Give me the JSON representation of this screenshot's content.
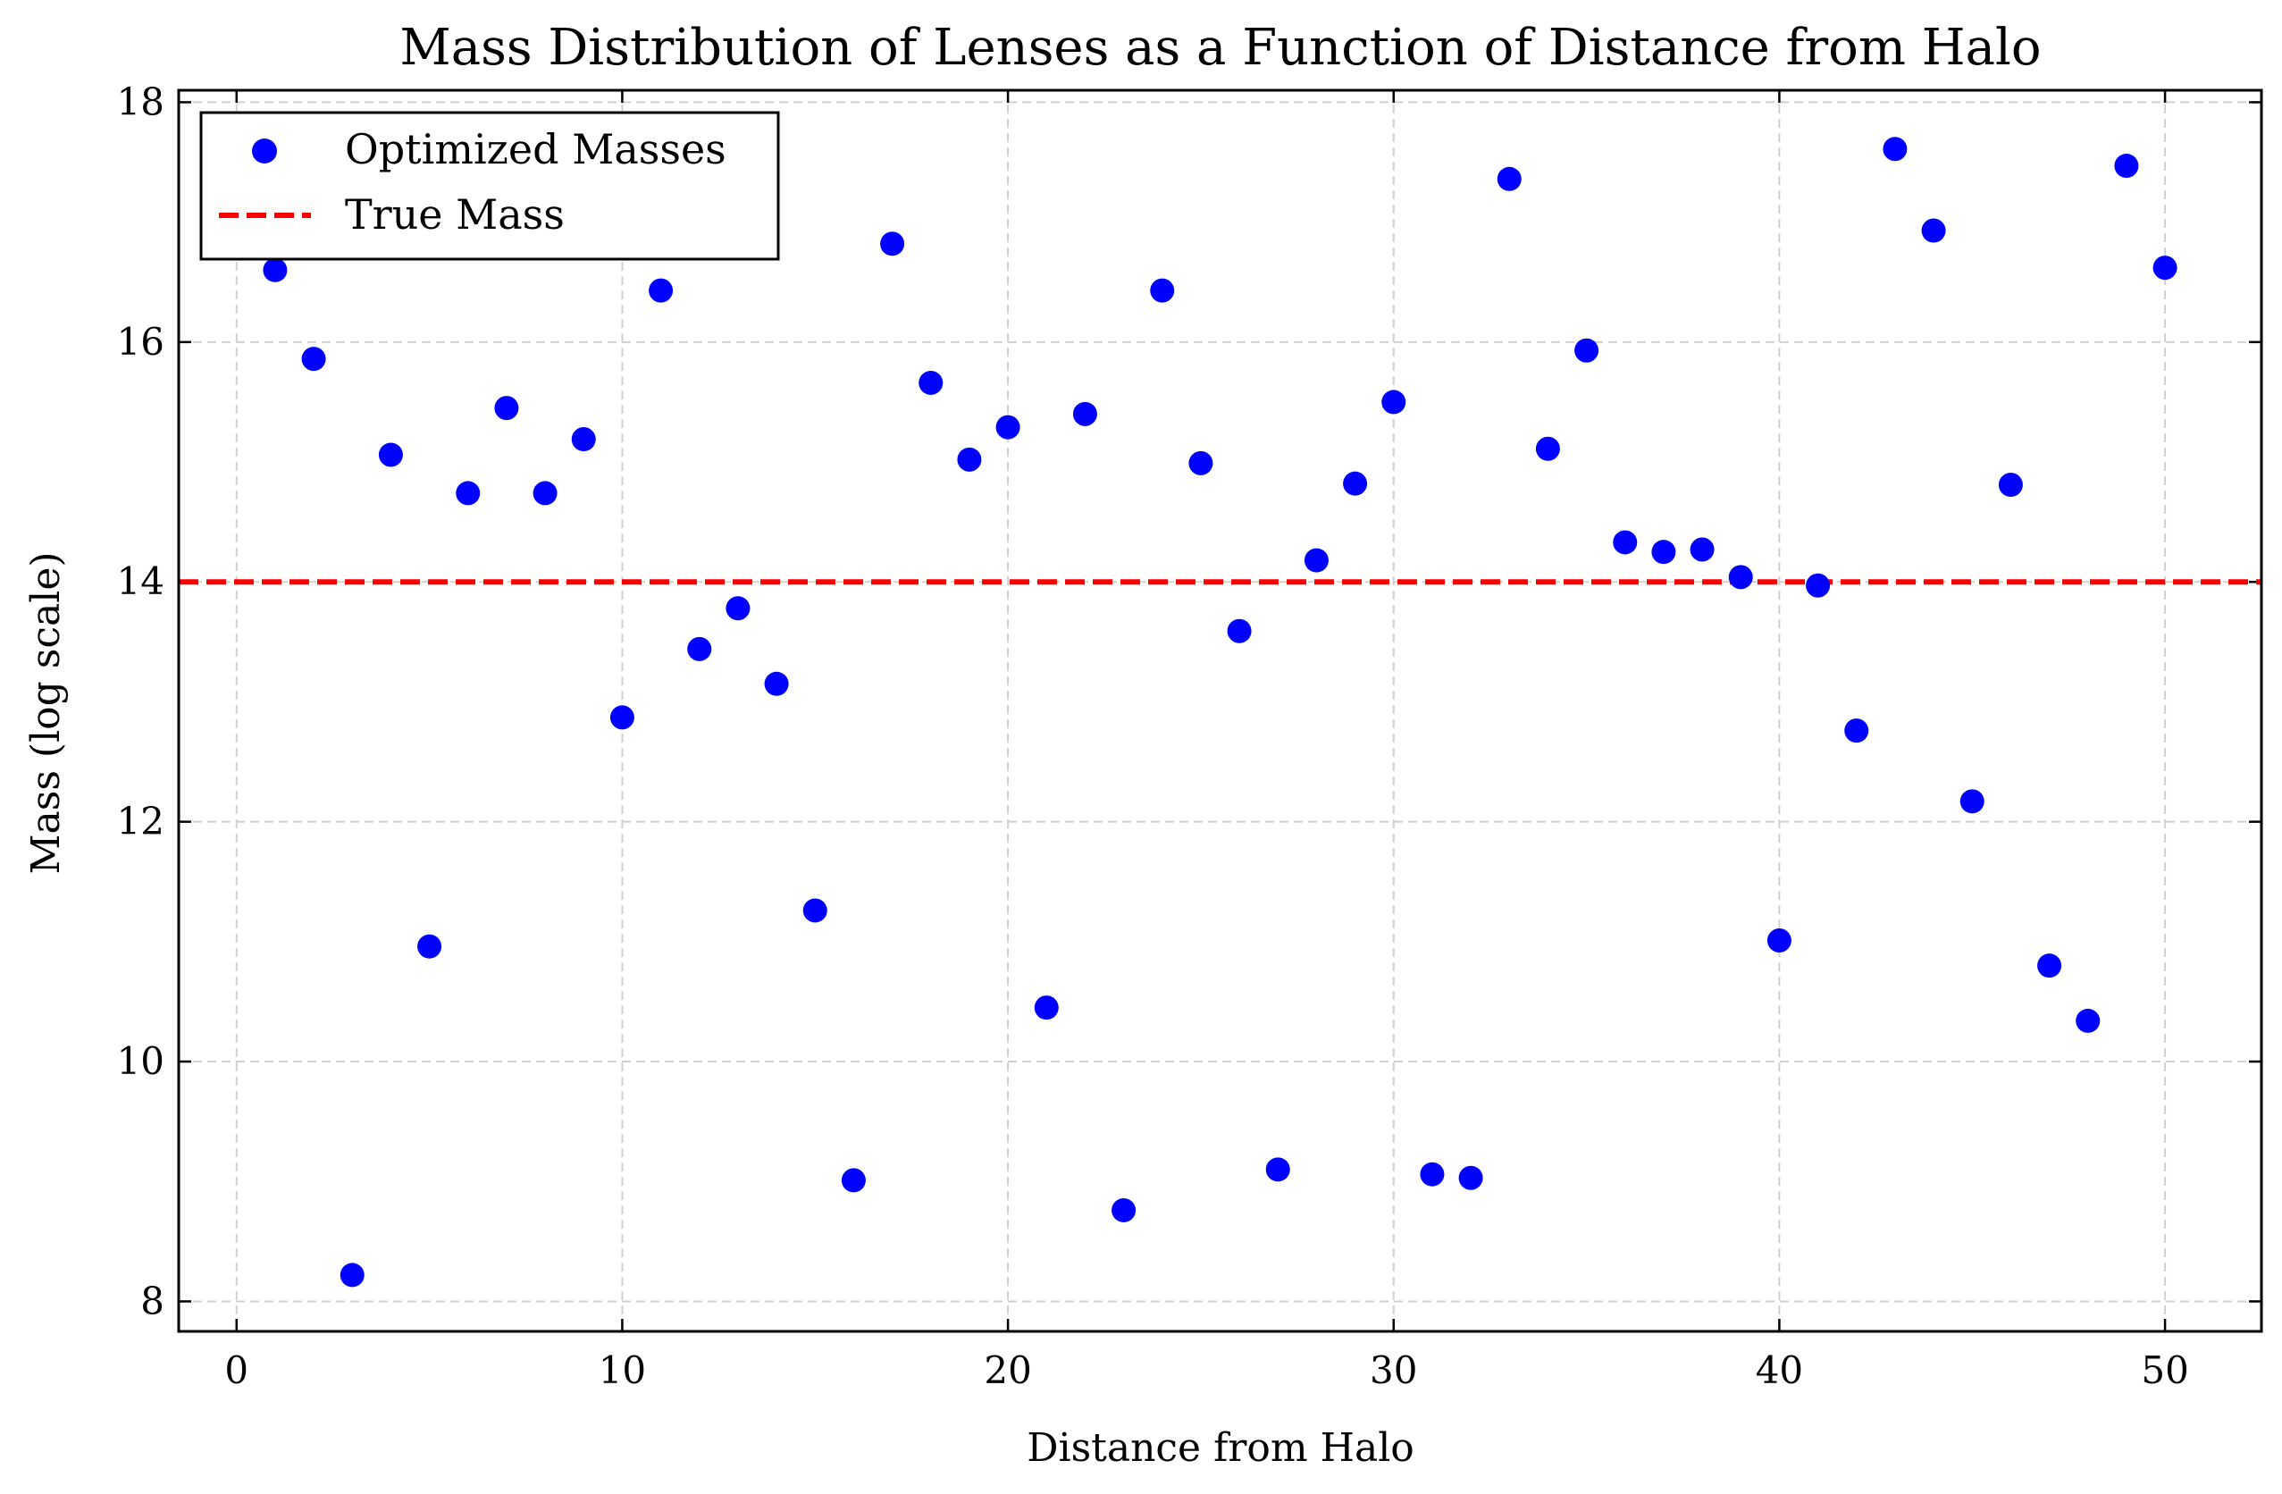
{
  "chart_data": {
    "type": "scatter",
    "title": "Mass Distribution of Lenses as a Function of Distance from Halo",
    "xlabel": "Distance from Halo",
    "ylabel": "Mass (log scale)",
    "xlim": [
      -1.5,
      52.5
    ],
    "ylim": [
      7.75,
      18.1
    ],
    "xticks": [
      0,
      10,
      20,
      30,
      40,
      50
    ],
    "yticks": [
      8,
      10,
      12,
      14,
      16,
      18
    ],
    "grid": true,
    "legend": {
      "position": "top-left",
      "entries": [
        "Optimized Masses",
        "True Mass"
      ]
    },
    "series": [
      {
        "name": "Optimized Masses",
        "kind": "scatter",
        "color": "#0000ff",
        "x": [
          1,
          2,
          3,
          4,
          5,
          6,
          7,
          8,
          9,
          10,
          11,
          12,
          13,
          14,
          15,
          16,
          17,
          18,
          19,
          20,
          21,
          22,
          23,
          24,
          25,
          26,
          27,
          28,
          29,
          30,
          31,
          32,
          33,
          34,
          35,
          36,
          37,
          38,
          39,
          40,
          41,
          42,
          43,
          44,
          45,
          46,
          47,
          48,
          49,
          50
        ],
        "y": [
          16.6,
          15.86,
          8.22,
          15.06,
          10.96,
          14.74,
          15.45,
          14.74,
          15.19,
          12.87,
          16.43,
          13.44,
          13.78,
          13.15,
          11.26,
          9.01,
          16.82,
          15.66,
          15.02,
          15.29,
          10.45,
          15.4,
          8.76,
          16.43,
          14.99,
          13.59,
          9.1,
          14.18,
          14.82,
          15.5,
          9.06,
          9.03,
          17.36,
          15.11,
          15.93,
          14.33,
          14.25,
          14.27,
          14.04,
          11.01,
          13.97,
          12.76,
          17.61,
          16.93,
          12.17,
          14.81,
          10.8,
          10.34,
          17.47,
          16.62
        ]
      },
      {
        "name": "True Mass",
        "kind": "hline",
        "color": "#ff0000",
        "y": 14
      }
    ]
  }
}
